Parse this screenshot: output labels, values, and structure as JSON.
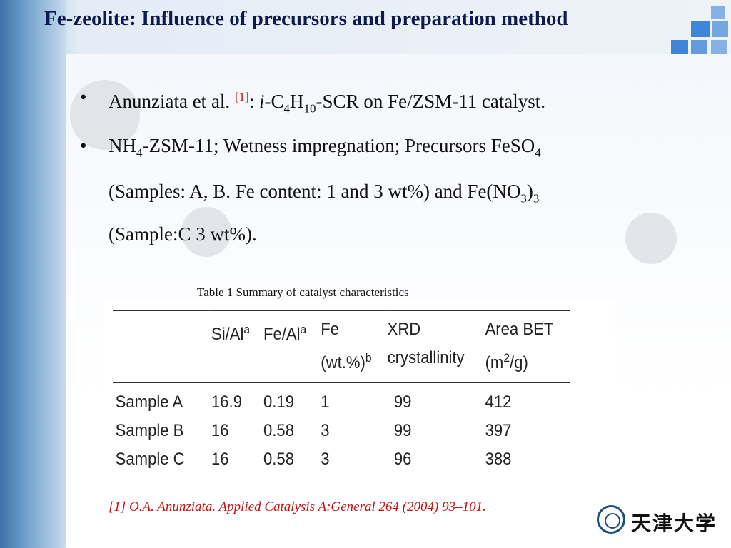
{
  "slide": {
    "title": "Fe-zeolite: Influence of precursors and preparation  method",
    "bullets": [
      {
        "lines": [
          [
            "Anunziata et al. ",
            {
              "sup": "[1]"
            },
            ": ",
            {
              "i": "i"
            },
            "-C",
            {
              "sub": "4"
            },
            "H",
            {
              "sub": "10"
            },
            "-SCR on Fe/ZSM-11 catalyst."
          ]
        ]
      },
      {
        "lines": [
          [
            "NH",
            {
              "sub": "4"
            },
            "-ZSM-11; Wetness impregnation; Precursors FeSO",
            {
              "sub": "4"
            }
          ],
          [
            "(Samples: A, B. Fe content: 1 and 3 wt%) and Fe(NO",
            {
              "sub": "3"
            },
            ")",
            {
              "sub": "3"
            }
          ],
          [
            "(Sample:C 3 wt%)."
          ]
        ]
      }
    ],
    "table_caption": "Table 1 Summary of catalyst characteristics",
    "table": {
      "headers": [
        {
          "main": "Si/Al",
          "sup": "a"
        },
        {
          "main": "Fe/Al",
          "sup": "a"
        },
        {
          "main": "Fe",
          "line2": "(wt.%)",
          "sup2": "b"
        },
        {
          "main": "XRD",
          "line2": "crystallinity"
        },
        {
          "main": "Area BET",
          "line2": "(m",
          "sup2": "2",
          "line2b": "/g)"
        }
      ],
      "rows": [
        [
          "Sample A",
          "16.9",
          "0.19",
          "1",
          "99",
          "412"
        ],
        [
          "Sample B",
          "16",
          "0.58",
          "3",
          "99",
          "397"
        ],
        [
          "Sample C",
          "16",
          "0.58",
          "3",
          "96",
          "388"
        ]
      ]
    },
    "reference": "[1] O.A. Anunziata. Applied Catalysis A:General 264 (2004) 93–101.",
    "logo_text": "天津大学"
  },
  "colors": {
    "title": "#0d1a4f",
    "reference": "#c81010",
    "accent_squares": "#3f86d8"
  }
}
